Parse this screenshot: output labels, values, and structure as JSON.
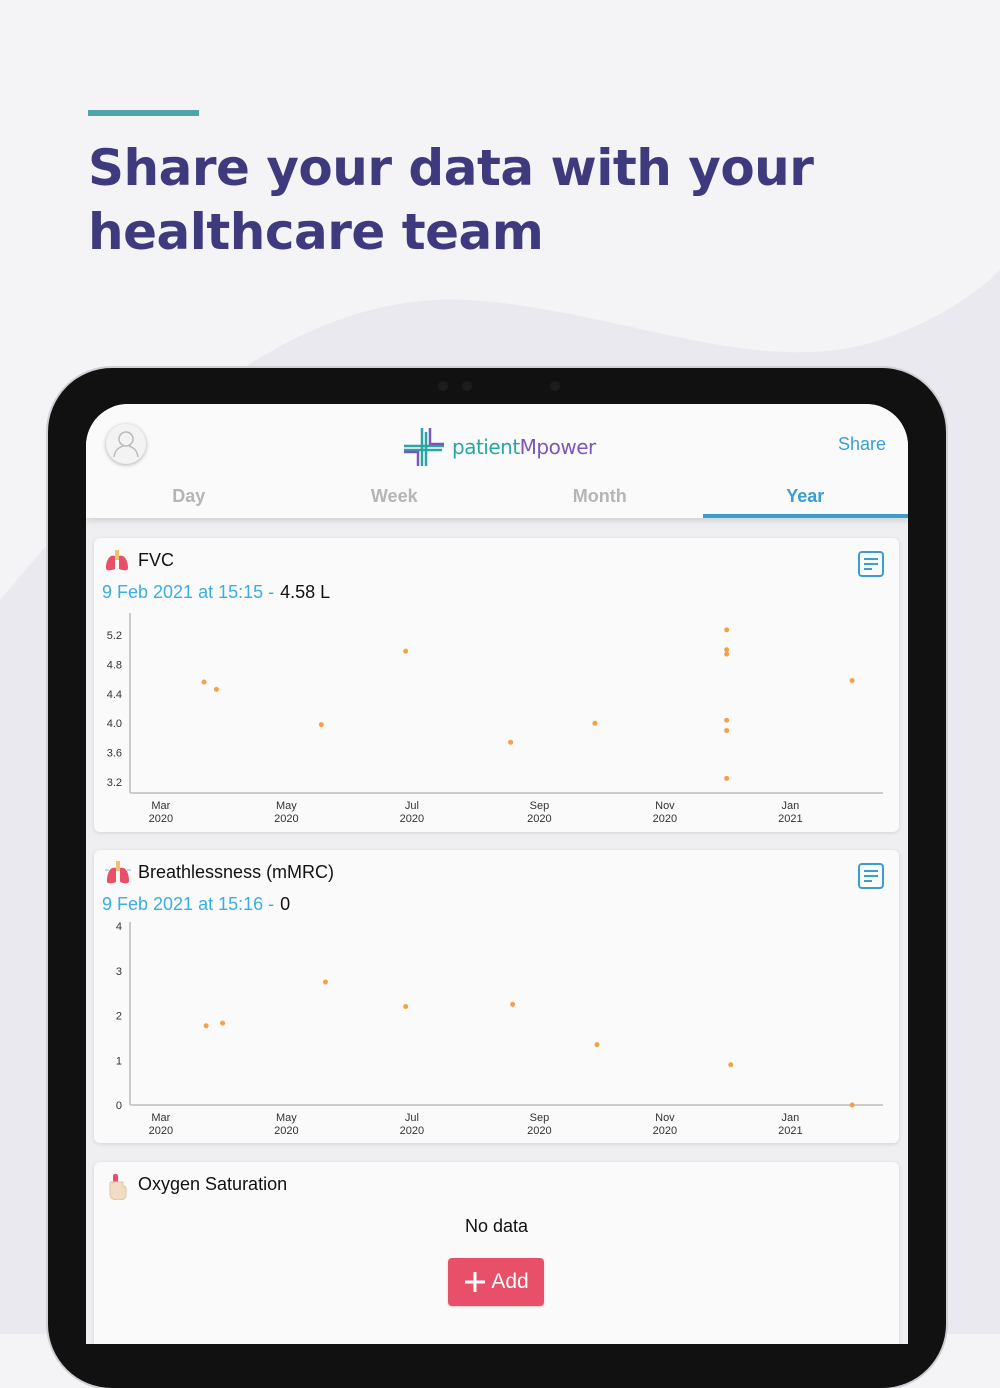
{
  "headline": "Share your data with your healthcare team",
  "app": {
    "logo_text_a": "patient",
    "logo_text_b": "Mpower",
    "share_label": "Share",
    "tabs": [
      {
        "label": "Day"
      },
      {
        "label": "Week"
      },
      {
        "label": "Month"
      },
      {
        "label": "Year",
        "active": true
      }
    ]
  },
  "cards": {
    "fvc": {
      "title": "FVC",
      "reading_time": "9 Feb 2021 at 15:15 -",
      "reading_value": "4.58 L"
    },
    "breath": {
      "title": "Breathlessness (mMRC)",
      "reading_time": "9 Feb 2021 at 15:16 -",
      "reading_value": "0"
    },
    "oxygen": {
      "title": "Oxygen Saturation",
      "empty_text": "No data",
      "add_label": "Add"
    }
  },
  "colors": {
    "accent": "#3a9ecf",
    "point": "#f5a04a",
    "add_button": "#e8506a",
    "headline": "#3f3a7e"
  },
  "chart_data": [
    {
      "type": "scatter",
      "title": "FVC",
      "xlim": [
        "2020-02-15",
        "2021-02-15"
      ],
      "ylim": [
        3.05,
        5.45
      ],
      "yticks": [
        "3.2",
        "3.6",
        "4.0",
        "4.4",
        "4.8",
        "5.2"
      ],
      "xticks": [
        [
          "Mar",
          "2020",
          "2020-03-01"
        ],
        [
          "May",
          "2020",
          "2020-05-01"
        ],
        [
          "Jul",
          "2020",
          "2020-07-01"
        ],
        [
          "Sep",
          "2020",
          "2020-09-01"
        ],
        [
          "Nov",
          "2020",
          "2020-11-01"
        ],
        [
          "Jan",
          "2021",
          "2021-01-01"
        ]
      ],
      "points": [
        [
          "2020-03-22",
          4.56
        ],
        [
          "2020-03-28",
          4.46
        ],
        [
          "2020-05-18",
          3.98
        ],
        [
          "2020-06-28",
          4.98
        ],
        [
          "2020-08-18",
          3.74
        ],
        [
          "2020-09-28",
          4.0
        ],
        [
          "2020-12-01",
          5.27
        ],
        [
          "2020-12-01",
          5.0
        ],
        [
          "2020-12-01",
          4.94
        ],
        [
          "2020-12-01",
          4.04
        ],
        [
          "2020-12-01",
          3.9
        ],
        [
          "2020-12-01",
          3.25
        ],
        [
          "2021-01-31",
          4.58
        ]
      ]
    },
    {
      "type": "scatter",
      "title": "Breathlessness (mMRC)",
      "xlim": [
        "2020-02-15",
        "2021-02-15"
      ],
      "ylim": [
        0,
        4
      ],
      "yticks": [
        "0",
        "1",
        "2",
        "3",
        "4"
      ],
      "xticks": [
        [
          "Mar",
          "2020",
          "2020-03-01"
        ],
        [
          "May",
          "2020",
          "2020-05-01"
        ],
        [
          "Jul",
          "2020",
          "2020-07-01"
        ],
        [
          "Sep",
          "2020",
          "2020-09-01"
        ],
        [
          "Nov",
          "2020",
          "2020-11-01"
        ],
        [
          "Jan",
          "2021",
          "2021-01-01"
        ]
      ],
      "points": [
        [
          "2020-03-23",
          1.77
        ],
        [
          "2020-03-31",
          1.83
        ],
        [
          "2020-05-20",
          2.75
        ],
        [
          "2020-06-28",
          2.2
        ],
        [
          "2020-08-19",
          2.25
        ],
        [
          "2020-09-29",
          1.35
        ],
        [
          "2020-12-03",
          0.9
        ],
        [
          "2021-01-31",
          0
        ]
      ]
    }
  ]
}
